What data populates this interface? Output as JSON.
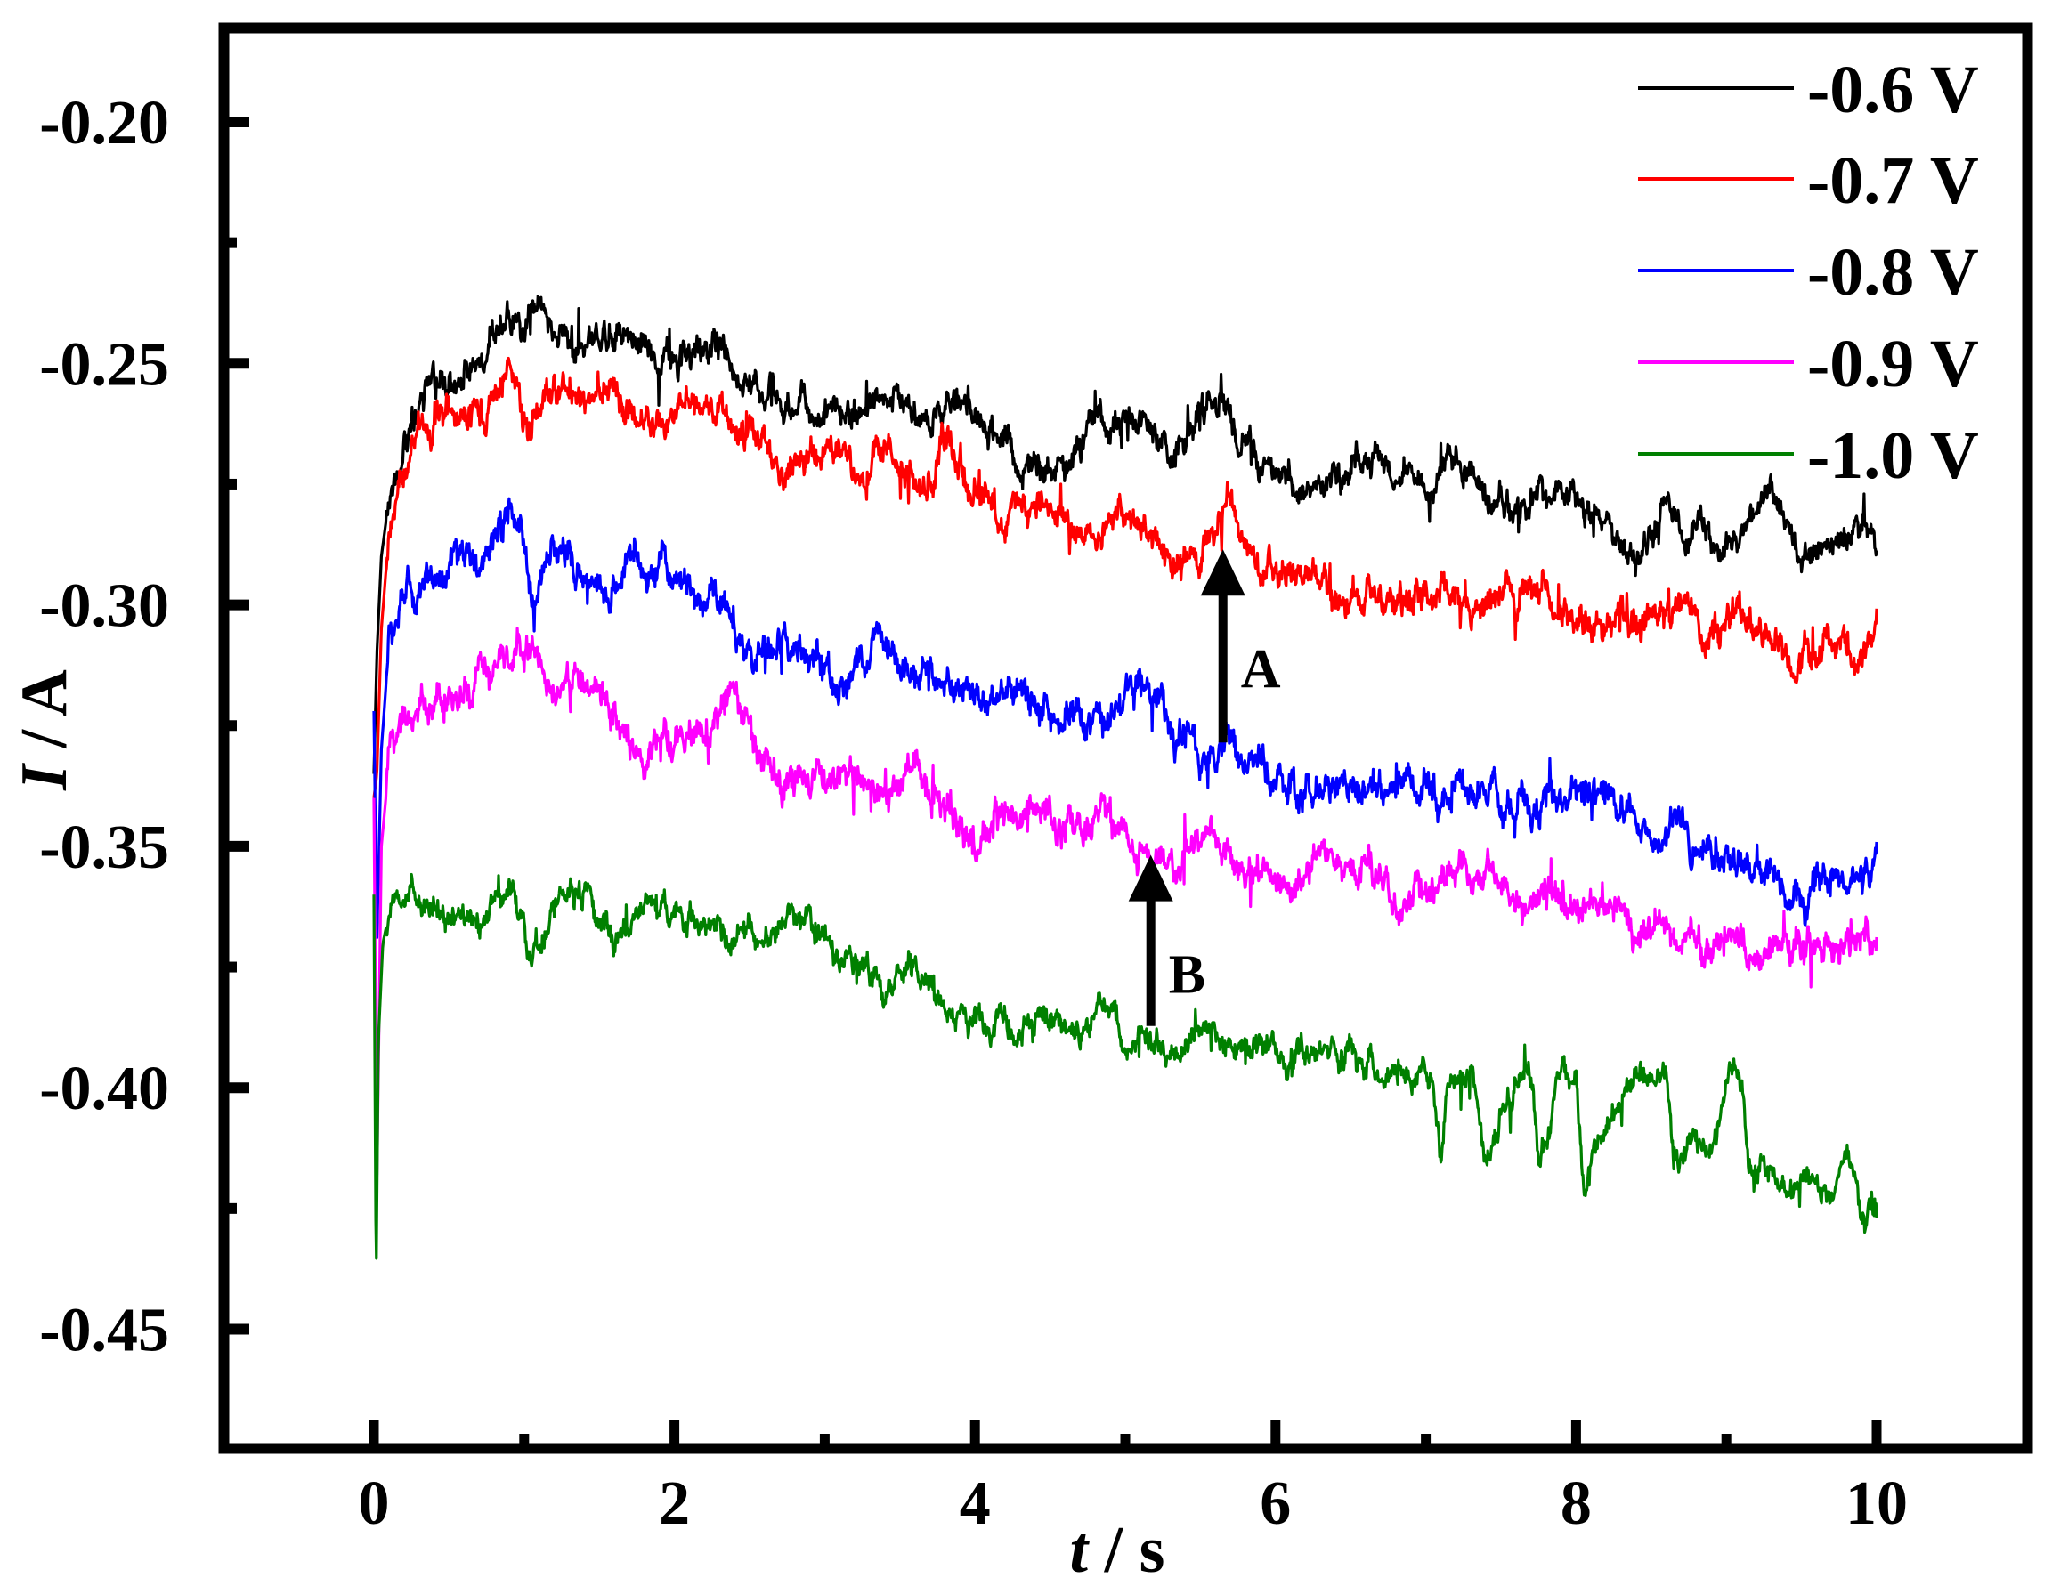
{
  "chart_data": {
    "type": "line",
    "title": "",
    "xlabel": "t / s",
    "xlabel_italic_part": "t",
    "xlabel_rest": " / s",
    "ylabel": "I / A",
    "ylabel_italic_part": "I",
    "ylabel_rest": " / A",
    "xlim": [
      -1,
      11
    ],
    "ylim": [
      -0.474,
      -0.182
    ],
    "x_ticks": [
      0,
      2,
      4,
      6,
      8,
      10
    ],
    "x_tick_labels": [
      "0",
      "2",
      "4",
      "6",
      "8",
      "10"
    ],
    "x_minor_ticks": [
      1,
      3,
      5,
      7,
      9
    ],
    "y_ticks": [
      -0.2,
      -0.25,
      -0.3,
      -0.35,
      -0.4,
      -0.45
    ],
    "y_tick_labels": [
      "-0.20",
      "-0.25",
      "-0.30",
      "-0.35",
      "-0.40",
      "-0.45"
    ],
    "y_minor_ticks": [
      -0.225,
      -0.275,
      -0.325,
      -0.375,
      -0.425
    ],
    "grid": false,
    "legend_position": "upper right",
    "series": [
      {
        "name": "-0.6 V",
        "color": "#000000",
        "noise": 0.0035,
        "x": [
          0,
          0.02,
          0.05,
          0.1,
          0.2,
          0.3,
          0.4,
          0.6,
          0.8,
          1.0,
          1.1,
          1.3,
          1.5,
          1.7,
          1.9,
          2.1,
          2.3,
          2.5,
          2.7,
          3.0,
          3.3,
          3.5,
          3.7,
          3.9,
          4.1,
          4.3,
          4.5,
          4.7,
          4.9,
          5.1,
          5.3,
          5.5,
          5.65,
          5.8,
          6.0,
          6.2,
          6.4,
          6.6,
          6.8,
          7.0,
          7.2,
          7.4,
          7.6,
          7.8,
          8.0,
          8.2,
          8.4,
          8.6,
          8.8,
          9.0,
          9.2,
          9.3,
          9.5,
          9.7,
          9.9,
          10.0
        ],
        "y": [
          -0.335,
          -0.31,
          -0.29,
          -0.278,
          -0.266,
          -0.259,
          -0.255,
          -0.251,
          -0.245,
          -0.242,
          -0.239,
          -0.246,
          -0.243,
          -0.242,
          -0.247,
          -0.25,
          -0.246,
          -0.252,
          -0.258,
          -0.261,
          -0.258,
          -0.259,
          -0.262,
          -0.258,
          -0.262,
          -0.271,
          -0.274,
          -0.268,
          -0.261,
          -0.263,
          -0.268,
          -0.262,
          -0.258,
          -0.265,
          -0.271,
          -0.277,
          -0.275,
          -0.268,
          -0.269,
          -0.276,
          -0.268,
          -0.276,
          -0.28,
          -0.276,
          -0.278,
          -0.284,
          -0.289,
          -0.281,
          -0.285,
          -0.289,
          -0.282,
          -0.275,
          -0.29,
          -0.286,
          -0.283,
          -0.285
        ]
      },
      {
        "name": "-0.7 V",
        "color": "#ff0000",
        "noise": 0.0038,
        "x": [
          0,
          0.02,
          0.05,
          0.1,
          0.2,
          0.3,
          0.5,
          0.7,
          0.85,
          0.9,
          1.0,
          1.2,
          1.4,
          1.6,
          1.8,
          2.0,
          2.2,
          2.4,
          2.6,
          2.8,
          3.0,
          3.2,
          3.4,
          3.6,
          3.8,
          4.0,
          4.2,
          4.4,
          4.6,
          4.8,
          5.0,
          5.2,
          5.4,
          5.6,
          5.7,
          5.9,
          6.1,
          6.3,
          6.5,
          6.7,
          6.9,
          7.1,
          7.3,
          7.5,
          7.7,
          7.9,
          8.1,
          8.3,
          8.5,
          8.7,
          8.9,
          9.1,
          9.3,
          9.5,
          9.7,
          9.9,
          10.0
        ],
        "y": [
          -0.34,
          -0.335,
          -0.305,
          -0.285,
          -0.272,
          -0.266,
          -0.262,
          -0.258,
          -0.256,
          -0.25,
          -0.262,
          -0.256,
          -0.259,
          -0.256,
          -0.262,
          -0.261,
          -0.258,
          -0.262,
          -0.268,
          -0.27,
          -0.268,
          -0.271,
          -0.268,
          -0.276,
          -0.268,
          -0.276,
          -0.282,
          -0.278,
          -0.28,
          -0.285,
          -0.283,
          -0.289,
          -0.29,
          -0.288,
          -0.283,
          -0.291,
          -0.292,
          -0.296,
          -0.3,
          -0.297,
          -0.298,
          -0.295,
          -0.302,
          -0.297,
          -0.296,
          -0.3,
          -0.304,
          -0.301,
          -0.303,
          -0.299,
          -0.306,
          -0.302,
          -0.305,
          -0.312,
          -0.307,
          -0.309,
          -0.306
        ]
      },
      {
        "name": "-0.8 V",
        "color": "#0000ff",
        "noise": 0.004,
        "x": [
          0,
          0.02,
          0.05,
          0.1,
          0.2,
          0.3,
          0.5,
          0.7,
          0.85,
          0.9,
          1.05,
          1.2,
          1.4,
          1.55,
          1.7,
          1.9,
          2.1,
          2.3,
          2.5,
          2.7,
          2.9,
          3.1,
          3.3,
          3.5,
          3.7,
          3.9,
          4.1,
          4.3,
          4.5,
          4.7,
          4.9,
          5.1,
          5.3,
          5.5,
          5.7,
          5.9,
          6.1,
          6.3,
          6.5,
          6.7,
          6.9,
          7.1,
          7.3,
          7.5,
          7.7,
          7.9,
          8.1,
          8.3,
          8.5,
          8.7,
          8.9,
          9.1,
          9.3,
          9.5,
          9.7,
          9.9,
          10.0
        ],
        "y": [
          -0.322,
          -0.37,
          -0.33,
          -0.308,
          -0.299,
          -0.296,
          -0.293,
          -0.29,
          -0.285,
          -0.28,
          -0.295,
          -0.287,
          -0.291,
          -0.3,
          -0.291,
          -0.294,
          -0.297,
          -0.301,
          -0.31,
          -0.308,
          -0.312,
          -0.318,
          -0.309,
          -0.31,
          -0.316,
          -0.32,
          -0.318,
          -0.316,
          -0.322,
          -0.326,
          -0.326,
          -0.316,
          -0.325,
          -0.333,
          -0.328,
          -0.334,
          -0.339,
          -0.338,
          -0.34,
          -0.337,
          -0.338,
          -0.34,
          -0.338,
          -0.342,
          -0.339,
          -0.342,
          -0.34,
          -0.341,
          -0.345,
          -0.349,
          -0.351,
          -0.352,
          -0.356,
          -0.359,
          -0.357,
          -0.356,
          -0.352
        ]
      },
      {
        "name": "-0.9 V",
        "color": "#ff00ff",
        "noise": 0.0038,
        "x": [
          0,
          0.02,
          0.05,
          0.1,
          0.2,
          0.3,
          0.5,
          0.7,
          0.9,
          1.05,
          1.2,
          1.4,
          1.6,
          1.8,
          2.0,
          2.2,
          2.4,
          2.6,
          2.8,
          3.0,
          3.2,
          3.4,
          3.6,
          3.8,
          4.0,
          4.2,
          4.4,
          4.6,
          4.8,
          5.0,
          5.2,
          5.4,
          5.6,
          5.8,
          6.0,
          6.2,
          6.4,
          6.6,
          6.8,
          7.0,
          7.2,
          7.4,
          7.6,
          7.8,
          8.0,
          8.2,
          8.4,
          8.6,
          8.8,
          9.0,
          9.2,
          9.4,
          9.6,
          9.7,
          9.8,
          10.0
        ],
        "y": [
          -0.34,
          -0.42,
          -0.35,
          -0.333,
          -0.327,
          -0.324,
          -0.32,
          -0.316,
          -0.311,
          -0.308,
          -0.318,
          -0.316,
          -0.322,
          -0.331,
          -0.33,
          -0.324,
          -0.322,
          -0.335,
          -0.338,
          -0.334,
          -0.336,
          -0.341,
          -0.334,
          -0.342,
          -0.349,
          -0.345,
          -0.342,
          -0.346,
          -0.344,
          -0.346,
          -0.352,
          -0.353,
          -0.349,
          -0.356,
          -0.357,
          -0.355,
          -0.356,
          -0.355,
          -0.362,
          -0.359,
          -0.356,
          -0.358,
          -0.358,
          -0.363,
          -0.359,
          -0.361,
          -0.368,
          -0.367,
          -0.37,
          -0.371,
          -0.372,
          -0.369,
          -0.371,
          -0.375,
          -0.37,
          -0.371
        ]
      },
      {
        "name": "-1.0 V",
        "color": "#008000",
        "noise": 0.0032,
        "x": [
          0,
          0.015,
          0.03,
          0.06,
          0.1,
          0.2,
          0.3,
          0.5,
          0.7,
          0.9,
          1.05,
          1.2,
          1.4,
          1.6,
          1.8,
          2.0,
          2.2,
          2.4,
          2.6,
          2.8,
          3.0,
          3.2,
          3.4,
          3.6,
          3.7,
          3.9,
          4.1,
          4.3,
          4.5,
          4.7,
          4.9,
          5.1,
          5.3,
          5.5,
          5.7,
          5.9,
          6.1,
          6.3,
          6.5,
          6.7,
          6.9,
          7.05,
          7.1,
          7.15,
          7.3,
          7.4,
          7.6,
          7.7,
          7.75,
          7.9,
          8.0,
          8.05,
          8.2,
          8.4,
          8.6,
          8.65,
          8.8,
          8.9,
          9.0,
          9.1,
          9.15,
          9.3,
          9.5,
          9.7,
          9.8,
          9.9,
          10.0
        ],
        "y": [
          -0.36,
          -0.441,
          -0.39,
          -0.37,
          -0.364,
          -0.362,
          -0.36,
          -0.362,
          -0.363,
          -0.36,
          -0.372,
          -0.362,
          -0.358,
          -0.368,
          -0.362,
          -0.363,
          -0.366,
          -0.37,
          -0.366,
          -0.364,
          -0.369,
          -0.376,
          -0.378,
          -0.376,
          -0.378,
          -0.385,
          -0.388,
          -0.386,
          -0.386,
          -0.388,
          -0.384,
          -0.391,
          -0.391,
          -0.388,
          -0.39,
          -0.392,
          -0.394,
          -0.395,
          -0.393,
          -0.394,
          -0.397,
          -0.398,
          -0.414,
          -0.397,
          -0.398,
          -0.414,
          -0.397,
          -0.398,
          -0.416,
          -0.398,
          -0.397,
          -0.418,
          -0.41,
          -0.398,
          -0.399,
          -0.416,
          -0.41,
          -0.414,
          -0.4,
          -0.396,
          -0.417,
          -0.418,
          -0.42,
          -0.422,
          -0.414,
          -0.425,
          -0.425
        ]
      }
    ],
    "annotations": [
      {
        "label": "A",
        "type": "arrow-up",
        "x": 5.65,
        "y_from": -0.3285,
        "y_to": -0.2885
      },
      {
        "label": "B",
        "type": "arrow-up",
        "x": 5.17,
        "y_from": -0.3872,
        "y_to": -0.3518
      }
    ]
  }
}
